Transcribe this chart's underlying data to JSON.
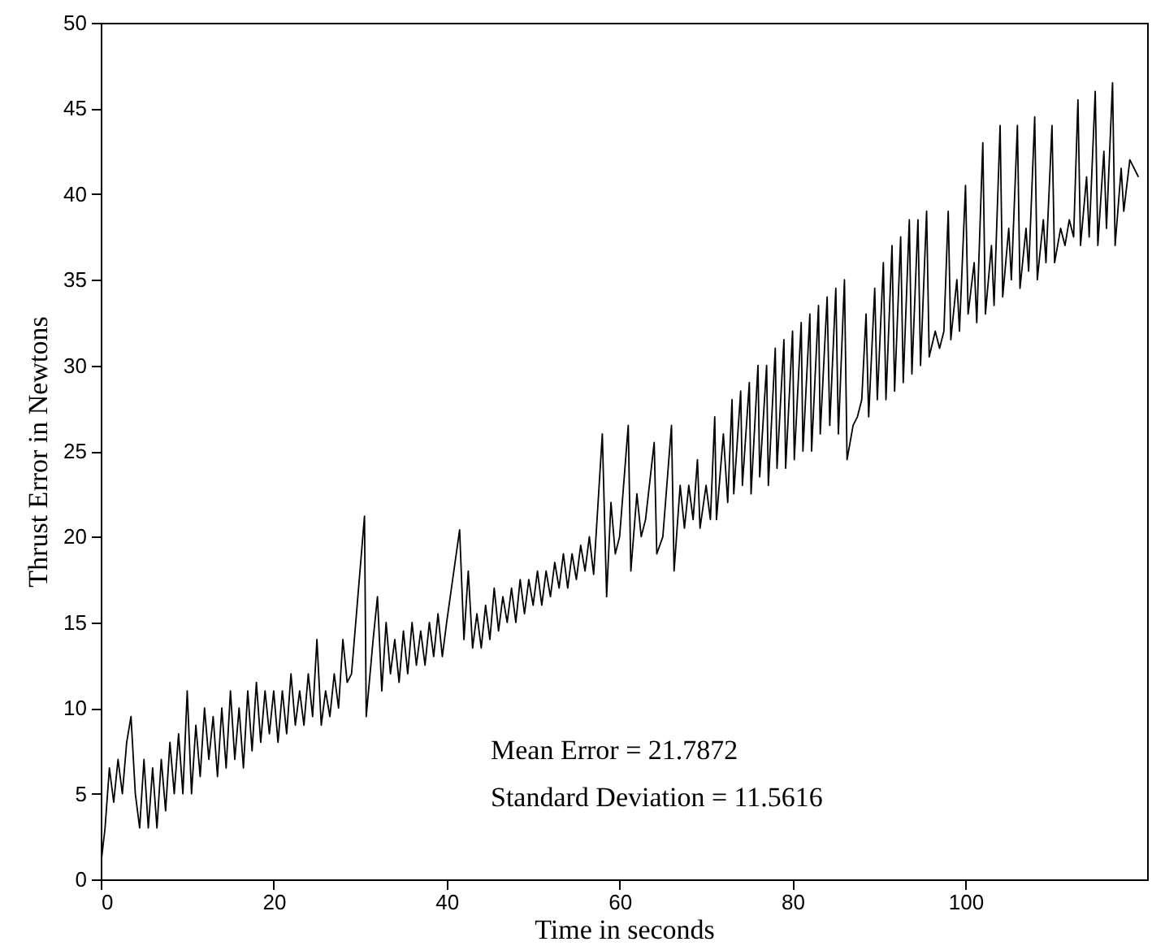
{
  "chart_data": {
    "type": "line",
    "xlabel": "Time in seconds",
    "ylabel": "Thrust Error in Newtons",
    "xlim": [
      0,
      121
    ],
    "ylim": [
      0,
      50
    ],
    "xticks": [
      0,
      20,
      40,
      60,
      80,
      100
    ],
    "yticks": [
      0,
      5,
      10,
      15,
      20,
      25,
      30,
      35,
      40,
      45,
      50
    ],
    "grid": false,
    "marker": "none",
    "line_style": "solid",
    "annotations": [
      "Mean Error = 21.7872",
      "Standard Deviation = 11.5616"
    ],
    "series": [
      {
        "color": "#000000",
        "x": [
          0,
          0.5,
          1,
          1.5,
          2,
          2.5,
          3,
          3.5,
          4,
          4.5,
          5,
          5.5,
          6,
          6.5,
          7,
          7.5,
          8,
          8.5,
          9,
          9.5,
          10,
          10.5,
          11,
          11.5,
          12,
          12.5,
          13,
          13.5,
          14,
          14.5,
          15,
          15.5,
          16,
          16.5,
          17,
          17.5,
          18,
          18.5,
          19,
          19.5,
          20,
          20.5,
          21,
          21.5,
          22,
          22.5,
          23,
          23.5,
          24,
          24.5,
          25,
          25.5,
          26,
          26.5,
          27,
          27.5,
          28,
          28.5,
          29,
          30.5,
          30.7,
          31.5,
          32,
          32.5,
          33,
          33.5,
          34,
          34.5,
          35,
          35.5,
          36,
          36.5,
          37,
          37.5,
          38,
          38.5,
          39,
          39.5,
          40,
          41.5,
          42,
          42.5,
          43,
          43.5,
          44,
          44.5,
          45,
          45.5,
          46,
          46.5,
          47,
          47.5,
          48,
          48.5,
          49,
          49.5,
          50,
          50.5,
          51,
          51.5,
          52,
          52.5,
          53,
          53.5,
          54,
          54.5,
          55,
          55.5,
          56,
          56.5,
          57,
          58,
          58.5,
          59,
          59.5,
          60,
          61,
          61.3,
          62,
          62.5,
          63,
          64,
          64.3,
          65,
          66,
          66.3,
          67,
          67.5,
          68,
          68.5,
          69,
          69.3,
          70,
          70.5,
          71,
          71.2,
          72,
          72.5,
          73,
          73.2,
          74,
          74.2,
          75,
          75.2,
          76,
          76.2,
          77,
          77.2,
          78,
          78.2,
          79,
          79.2,
          80,
          80.2,
          81,
          81.2,
          82,
          82.2,
          83,
          83.2,
          84,
          84.3,
          85,
          85.3,
          86,
          86.3,
          87,
          87.5,
          88,
          88.5,
          88.8,
          89.5,
          89.8,
          90.5,
          90.8,
          91.5,
          91.8,
          92.5,
          92.8,
          93.5,
          93.8,
          94.5,
          94.8,
          95.5,
          95.8,
          96.5,
          97,
          97.5,
          98,
          98.3,
          99,
          99.3,
          100,
          100.3,
          101,
          101.3,
          102,
          102.3,
          103,
          103.3,
          104,
          104.3,
          105,
          105.3,
          106,
          106.3,
          107,
          107.3,
          108,
          108.3,
          109,
          109.3,
          110,
          110.3,
          111,
          111.5,
          112,
          112.5,
          113,
          113.3,
          114,
          114.3,
          115,
          115.3,
          116,
          116.3,
          117,
          117.3,
          118,
          118.3,
          119,
          120
        ],
        "values": [
          0.8,
          3,
          6.5,
          4.5,
          7,
          5,
          8,
          9.5,
          5,
          3,
          7,
          3,
          6.5,
          3,
          7,
          4,
          8,
          5,
          8.5,
          5,
          11,
          5,
          9,
          6,
          10,
          7,
          9.5,
          6,
          10,
          6.5,
          11,
          7,
          10,
          6.5,
          11,
          7.5,
          11.5,
          8,
          11,
          8.5,
          11,
          8,
          11,
          8.5,
          12,
          9,
          11,
          9,
          12,
          9.5,
          14,
          9,
          11,
          9.5,
          12,
          10,
          14,
          11.5,
          12,
          21.2,
          9.5,
          14,
          16.5,
          11,
          15,
          12,
          14,
          11.5,
          14.5,
          12,
          15,
          12.5,
          14.5,
          12.5,
          15,
          13,
          15.5,
          13,
          15,
          20.4,
          14,
          18,
          13.5,
          15.5,
          13.5,
          16,
          14,
          17,
          14.5,
          16.5,
          15,
          17,
          15,
          17.5,
          15.5,
          17.5,
          16,
          18,
          16,
          18,
          16.5,
          18.5,
          17,
          19,
          17,
          19,
          17.5,
          19.5,
          18,
          20,
          17.8,
          26,
          16.5,
          22,
          19,
          20,
          26.5,
          18,
          22.5,
          20,
          21,
          25.5,
          19,
          20,
          26.5,
          18,
          23,
          20.5,
          23,
          21,
          24.5,
          20.5,
          23,
          21,
          27,
          21,
          26,
          22,
          28,
          22.5,
          28.5,
          23,
          29,
          22.5,
          30,
          23.5,
          30,
          23,
          31,
          24,
          31.5,
          24,
          32,
          24.5,
          32.5,
          25,
          33,
          25,
          33.5,
          26,
          34,
          26.5,
          34.5,
          26,
          35,
          24.5,
          26.5,
          27,
          28,
          33,
          27,
          34.5,
          28,
          36,
          28,
          37,
          28.5,
          37.5,
          29,
          38.5,
          29.5,
          38.5,
          30,
          39,
          30.5,
          32,
          31,
          32,
          39,
          31.5,
          35,
          32,
          40.5,
          33,
          36,
          32.5,
          43,
          33,
          37,
          33.5,
          44,
          34,
          38,
          35,
          44,
          34.5,
          38,
          35.5,
          44.5,
          35,
          38.5,
          36,
          44,
          36,
          38,
          37,
          38.5,
          37.5,
          45.5,
          37,
          41,
          37.5,
          46,
          37,
          42.5,
          38,
          46.5,
          37,
          41.5,
          39,
          42,
          41
        ]
      }
    ]
  }
}
